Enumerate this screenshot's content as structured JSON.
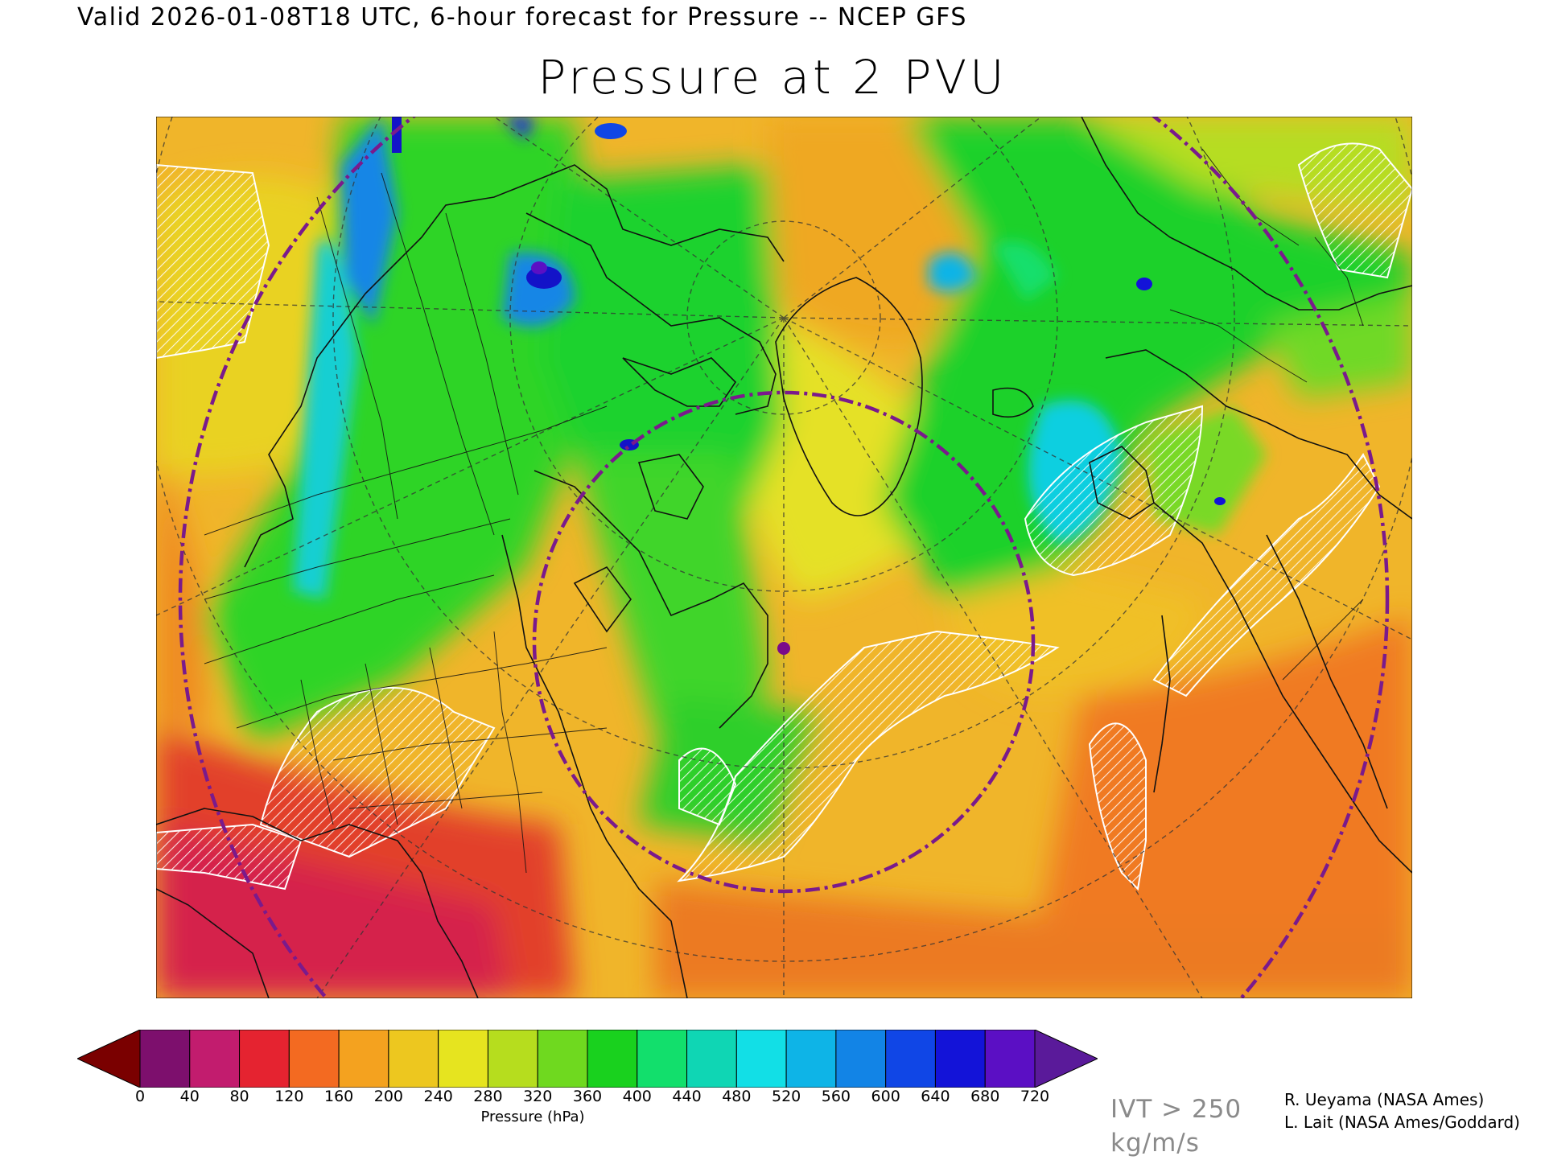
{
  "header": {
    "valid_line": "Valid 2026-01-08T18 UTC, 6-hour forecast for Pressure -- NCEP GFS",
    "title": "Pressure at 2 PVU"
  },
  "colorbar": {
    "label": "Pressure (hPa)",
    "ticks": [
      "0",
      "40",
      "80",
      "120",
      "160",
      "200",
      "240",
      "280",
      "320",
      "360",
      "400",
      "440",
      "480",
      "520",
      "560",
      "600",
      "640",
      "680",
      "720"
    ],
    "below_color": "#7a0000",
    "above_color": "#5a1a9a",
    "bin_colors": [
      "#7d0f6d",
      "#c21c6e",
      "#e52330",
      "#f36a21",
      "#f4a21f",
      "#edc71f",
      "#e6e41f",
      "#b6dd1e",
      "#6fd91f",
      "#19d11e",
      "#12df6c",
      "#0fd6b4",
      "#12dfe6",
      "#0eb4e7",
      "#1284e6",
      "#1046e6",
      "#1313d8",
      "#5b0fc4"
    ]
  },
  "annotations": {
    "ivt_line1": "IVT > 250",
    "ivt_line2": "kg/m/s",
    "credit_1": "R. Ueyama (NASA Ames)",
    "credit_2": "L. Lait (NASA Ames/Goddard)"
  },
  "map": {
    "projection": "polar stereographic (north pole)",
    "shading_variable": "Pressure (hPa)",
    "overlays": [
      "coastlines",
      "political boundaries",
      "lat/lon graticule (dashed)",
      "IVT > 250 kg/m/s hatching (white)",
      "purple dash-dot circles"
    ],
    "marker_color": "#7a0a8a"
  }
}
